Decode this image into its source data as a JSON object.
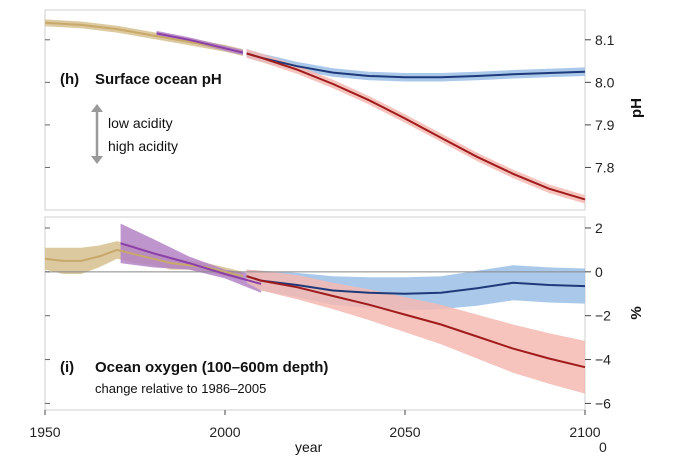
{
  "chart_data": [
    {
      "panel": "h",
      "type": "line",
      "title_letter": "(h)",
      "title": "Surface ocean pH",
      "annotation_upper": "low acidity",
      "annotation_lower": "high acidity",
      "ylabel": "pH",
      "xlim": [
        1950,
        2100
      ],
      "ylim": [
        7.7,
        8.17
      ],
      "yticks": [
        7.8,
        7.9,
        8.0,
        8.1
      ],
      "ytick_labels": [
        "7.8",
        "7.9",
        "8.0",
        "8.1"
      ],
      "yticks_left": [
        7.8,
        7.9,
        8.0,
        8.1
      ],
      "grid": false,
      "colors": {
        "historical": "#c8a96a",
        "observed": "#8b3fa8",
        "low_emission": "#1f3a7a",
        "high_emission": "#a01c1c"
      },
      "series": [
        {
          "key": "historical",
          "x": [
            1950,
            1960,
            1970,
            1980,
            1990,
            2000,
            2005
          ],
          "y": [
            8.14,
            8.135,
            8.125,
            8.11,
            8.095,
            8.08,
            8.07
          ],
          "band": 0.008
        },
        {
          "key": "observed",
          "x": [
            1981,
            1990,
            2000,
            2005
          ],
          "y": [
            8.115,
            8.1,
            8.08,
            8.07
          ],
          "band": 0.006
        },
        {
          "key": "low_emission",
          "x": [
            2006,
            2010,
            2020,
            2030,
            2040,
            2050,
            2060,
            2070,
            2080,
            2090,
            2100
          ],
          "y": [
            8.068,
            8.058,
            8.038,
            8.023,
            8.015,
            8.012,
            8.012,
            8.015,
            8.019,
            8.022,
            8.025
          ],
          "band": 0.01
        },
        {
          "key": "high_emission",
          "x": [
            2006,
            2010,
            2020,
            2030,
            2040,
            2050,
            2060,
            2070,
            2080,
            2090,
            2100
          ],
          "y": [
            8.068,
            8.058,
            8.03,
            7.996,
            7.958,
            7.915,
            7.87,
            7.825,
            7.785,
            7.75,
            7.725
          ],
          "band": 0.01
        }
      ]
    },
    {
      "panel": "i",
      "type": "line",
      "title_letter": "(i)",
      "title": "Ocean oxygen (100–600m depth)",
      "subtitle": "change relative to 1986–2005",
      "ylabel": "%",
      "xlabel": "year",
      "xlim": [
        1950,
        2100
      ],
      "xticks": [
        1950,
        2000,
        2050,
        2100
      ],
      "ylim": [
        -6.3,
        2.5
      ],
      "yticks": [
        -6,
        -4,
        -2,
        0,
        2
      ],
      "ytick_labels": [
        "−6",
        "−4",
        "−2",
        "0",
        "2"
      ],
      "extra_bottom_label": "0",
      "colors": {
        "historical": "#c8a96a",
        "observed": "#8b3fa8",
        "low_emission": "#1f3a7a",
        "high_emission": "#a01c1c",
        "zero_line": "#888888"
      },
      "series": [
        {
          "key": "historical",
          "x": [
            1950,
            1955,
            1960,
            1965,
            1970,
            1975,
            1980,
            1985,
            1990,
            1995,
            2000,
            2005
          ],
          "y": [
            0.6,
            0.5,
            0.5,
            0.7,
            1.0,
            0.8,
            0.6,
            0.4,
            0.3,
            0.2,
            0.0,
            -0.2
          ],
          "band": [
            0.5,
            0.6,
            0.6,
            0.5,
            0.4,
            0.4,
            0.3,
            0.3,
            0.2,
            0.2,
            0.2,
            0.2
          ]
        },
        {
          "key": "observed",
          "x": [
            1971,
            1980,
            1990,
            2000,
            2010
          ],
          "y": [
            1.3,
            0.85,
            0.4,
            -0.1,
            -0.55
          ],
          "band": [
            0.9,
            0.65,
            0.3,
            0.2,
            0.4
          ]
        },
        {
          "key": "low_emission",
          "x": [
            2006,
            2010,
            2020,
            2030,
            2040,
            2050,
            2060,
            2070,
            2080,
            2090,
            2100
          ],
          "y": [
            -0.2,
            -0.4,
            -0.6,
            -0.85,
            -0.95,
            -1.0,
            -0.95,
            -0.75,
            -0.5,
            -0.6,
            -0.65
          ],
          "band": [
            0.3,
            0.45,
            0.55,
            0.65,
            0.7,
            0.75,
            0.75,
            0.8,
            0.8,
            0.8,
            0.8
          ]
        },
        {
          "key": "high_emission",
          "x": [
            2006,
            2010,
            2020,
            2030,
            2040,
            2050,
            2060,
            2070,
            2080,
            2090,
            2100
          ],
          "y": [
            -0.2,
            -0.4,
            -0.7,
            -1.1,
            -1.5,
            -1.95,
            -2.4,
            -2.95,
            -3.5,
            -3.95,
            -4.35
          ],
          "band": [
            0.3,
            0.45,
            0.55,
            0.6,
            0.7,
            0.8,
            0.9,
            1.0,
            1.1,
            1.15,
            1.2
          ]
        }
      ]
    }
  ]
}
